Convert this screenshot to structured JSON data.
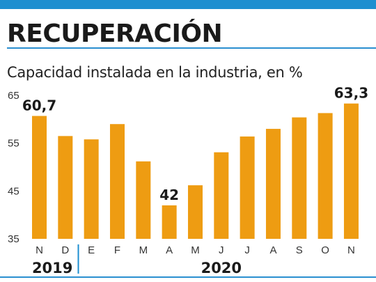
{
  "header": {
    "title": "RECUPERACIÓN",
    "subtitle": "Capacidad instalada en la industria, en %"
  },
  "colors": {
    "bar": "#ee9c12",
    "accent": "#1e8fd0",
    "text": "#1a1a1a"
  },
  "chart_data": {
    "type": "bar",
    "categories": [
      "N",
      "D",
      "E",
      "F",
      "M",
      "A",
      "M",
      "J",
      "J",
      "A",
      "S",
      "O",
      "N"
    ],
    "values": [
      60.7,
      56.5,
      55.8,
      59.0,
      51.2,
      42.0,
      46.2,
      53.1,
      56.4,
      58.0,
      60.4,
      61.3,
      63.3
    ],
    "data_labels": [
      {
        "index": 0,
        "text": "60,7"
      },
      {
        "index": 5,
        "text": "42"
      },
      {
        "index": 12,
        "text": "63,3"
      }
    ],
    "yticks": [
      35,
      45,
      55,
      65
    ],
    "ytick_labels": [
      "35",
      "45",
      "55",
      "65"
    ],
    "ylim": [
      35,
      65
    ],
    "year_groups": [
      {
        "label": "2019",
        "start": 0,
        "end": 1
      },
      {
        "label": "2020",
        "start": 2,
        "end": 12
      }
    ],
    "grid": false,
    "title": "RECUPERACIÓN",
    "xlabel": "",
    "ylabel": ""
  }
}
